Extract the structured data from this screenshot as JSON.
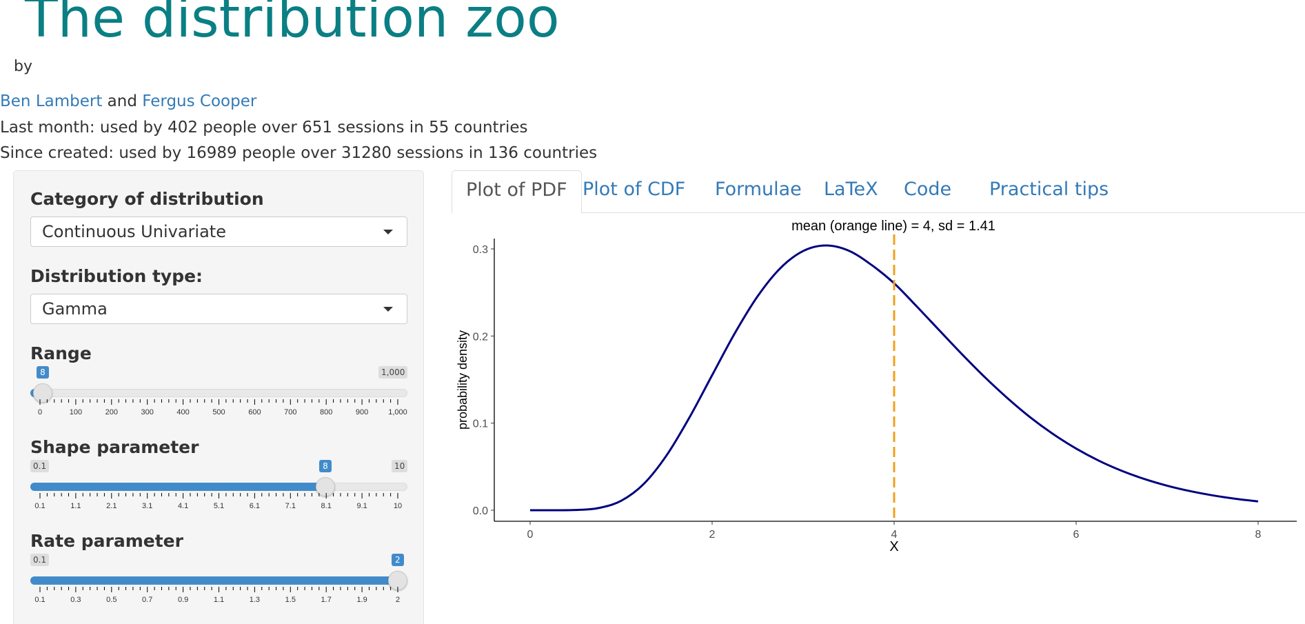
{
  "header": {
    "title": "The distribution zoo",
    "by": "by",
    "author1": "Ben Lambert",
    "and": "and",
    "author2": "Fergus Cooper",
    "last_month": "Last month: used by 402 people over 651 sessions in 55 countries",
    "since_created": "Since created: used by 16989 people over 31280 sessions in 136 countries"
  },
  "sidebar": {
    "category_label": "Category of distribution",
    "category_value": "Continuous Univariate",
    "type_label": "Distribution type:",
    "type_value": "Gamma",
    "range": {
      "label": "Range",
      "min_label": "0",
      "max_label": "1,000",
      "current": "8",
      "min": 0,
      "max": 1000,
      "value": 8,
      "ticks": [
        "0",
        "100",
        "200",
        "300",
        "400",
        "500",
        "600",
        "700",
        "800",
        "900",
        "1,000"
      ]
    },
    "shape": {
      "label": "Shape parameter",
      "min_label": "0.1",
      "max_label": "10",
      "current": "8",
      "min": 0.1,
      "max": 10,
      "value": 8,
      "ticks": [
        "0.1",
        "1.1",
        "2.1",
        "3.1",
        "4.1",
        "5.1",
        "6.1",
        "7.1",
        "8.1",
        "9.1",
        "10"
      ]
    },
    "rate": {
      "label": "Rate parameter",
      "min_label": "0.1",
      "max_label": "2",
      "current": "2",
      "min": 0.1,
      "max": 2,
      "value": 2,
      "ticks": [
        "0.1",
        "0.3",
        "0.5",
        "0.7",
        "0.9",
        "1.1",
        "1.3",
        "1.5",
        "1.7",
        "1.9",
        "2"
      ]
    }
  },
  "tabs": [
    {
      "label": "Plot of PDF",
      "active": true
    },
    {
      "label": "Plot of CDF",
      "active": false
    },
    {
      "label": "Formulae",
      "active": false
    },
    {
      "label": "LaTeX",
      "active": false
    },
    {
      "label": "Code",
      "active": false
    },
    {
      "label": "Practical tips",
      "active": false
    }
  ],
  "chart_data": {
    "type": "line",
    "title": "mean (orange line) = 4, sd = 1.41",
    "xlabel": "X",
    "ylabel": "probability density",
    "xlim": [
      0,
      8
    ],
    "ylim": [
      0,
      0.3
    ],
    "xticks": [
      "0",
      "2",
      "4",
      "6",
      "8"
    ],
    "yticks": [
      "0.0",
      "0.1",
      "0.2",
      "0.3"
    ],
    "series": [
      {
        "color": "#000080",
        "x": [
          0,
          0.25,
          0.5,
          0.75,
          1,
          1.25,
          1.5,
          1.75,
          2,
          2.25,
          2.5,
          2.75,
          3,
          3.25,
          3.5,
          3.75,
          4,
          4.25,
          4.5,
          4.75,
          5,
          5.25,
          5.5,
          5.75,
          6,
          6.25,
          6.5,
          6.75,
          7,
          7.25,
          7.5,
          7.75,
          8
        ],
        "values": [
          0,
          3e-06,
          0.00026,
          0.00247,
          0.01087,
          0.03034,
          0.06307,
          0.10634,
          0.15505,
          0.20332,
          0.24568,
          0.27793,
          0.29758,
          0.30397,
          0.29804,
          0.28172,
          0.26053,
          0.23382,
          0.20616,
          0.17866,
          0.1524,
          0.12825,
          0.10633,
          0.08727,
          0.07077,
          0.05686,
          0.04533,
          0.03585,
          0.02816,
          0.02199,
          0.01707,
          0.01318,
          0.01013
        ]
      }
    ],
    "mean_line": {
      "x": 4,
      "color": "#f0a01e"
    }
  }
}
